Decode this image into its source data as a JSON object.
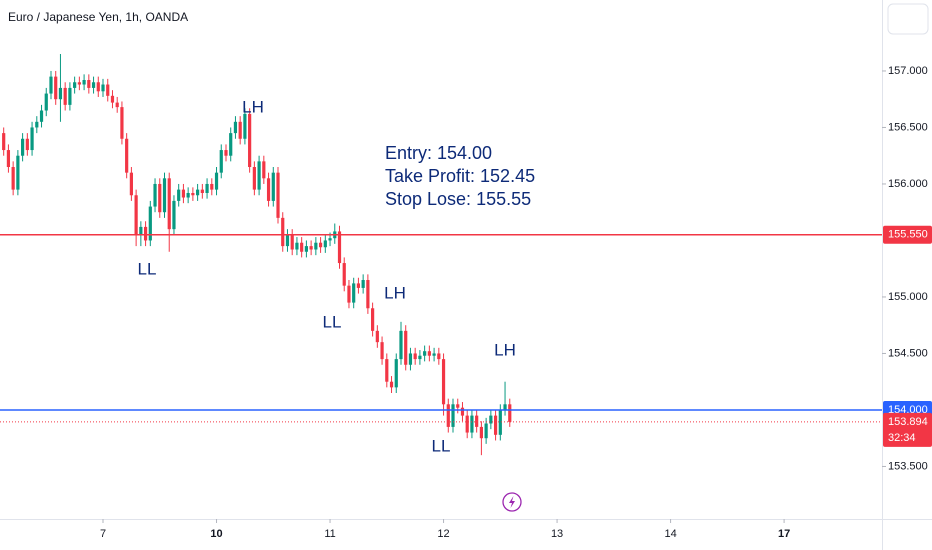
{
  "chart_data": {
    "type": "candlestick",
    "title": "Euro / Japanese Yen, 1h, OANDA",
    "series": [
      {
        "up_color": "#089981",
        "down_color": "#f23645",
        "open": [
          156.45,
          156.3,
          156.15,
          155.95,
          156.25,
          156.4,
          156.3,
          156.5,
          156.55,
          156.65,
          156.8,
          156.95,
          156.75,
          156.85,
          156.7,
          156.85,
          156.9,
          156.88,
          156.92,
          156.85,
          156.9,
          156.82,
          156.88,
          156.78,
          156.72,
          156.68,
          156.4,
          156.1,
          155.9,
          155.55,
          155.62,
          155.5,
          155.8,
          156.0,
          155.75,
          156.05,
          155.6,
          155.85,
          155.95,
          155.88,
          155.92,
          155.9,
          155.95,
          155.92,
          156.0,
          155.95,
          156.1,
          156.3,
          156.25,
          156.45,
          156.55,
          156.4,
          156.62,
          156.15,
          155.95,
          156.2,
          156.05,
          155.85,
          156.1,
          155.7,
          155.45,
          155.55,
          155.42,
          155.48,
          155.4,
          155.45,
          155.42,
          155.48,
          155.44,
          155.5,
          155.52,
          155.58,
          155.3,
          155.1,
          154.95,
          155.12,
          155.08,
          155.15,
          154.9,
          154.7,
          154.6,
          154.45,
          154.25,
          154.2,
          154.45,
          154.7,
          154.4,
          154.5,
          154.45,
          154.48,
          154.52,
          154.48,
          154.5,
          154.45,
          154.05,
          153.85,
          154.05,
          154.02,
          153.95,
          153.8,
          153.95,
          153.85,
          153.75,
          153.88,
          153.95,
          153.78,
          154.0,
          154.05
        ],
        "high": [
          156.5,
          156.35,
          156.2,
          156.3,
          156.45,
          156.45,
          156.55,
          156.6,
          156.7,
          156.85,
          157.0,
          157.0,
          157.15,
          156.9,
          156.9,
          156.95,
          156.95,
          156.97,
          156.97,
          156.95,
          156.95,
          156.93,
          156.93,
          156.83,
          156.77,
          156.73,
          156.45,
          156.15,
          155.95,
          155.67,
          155.67,
          155.85,
          156.05,
          156.05,
          156.1,
          156.1,
          155.9,
          156.0,
          156.0,
          155.97,
          155.97,
          156.0,
          156.0,
          156.05,
          156.05,
          156.15,
          156.35,
          156.35,
          156.5,
          156.6,
          156.6,
          156.67,
          156.67,
          156.2,
          156.25,
          156.25,
          156.1,
          156.15,
          156.15,
          155.75,
          155.6,
          155.6,
          155.53,
          155.53,
          155.5,
          155.5,
          155.53,
          155.53,
          155.55,
          155.57,
          155.65,
          155.63,
          155.35,
          155.15,
          155.17,
          155.17,
          155.2,
          155.2,
          154.95,
          154.75,
          154.65,
          154.5,
          154.3,
          154.5,
          154.78,
          154.75,
          154.55,
          154.55,
          154.53,
          154.57,
          154.57,
          154.55,
          154.55,
          154.5,
          154.1,
          154.1,
          154.1,
          154.07,
          154.0,
          154.0,
          154.0,
          153.9,
          153.93,
          154.0,
          154.0,
          154.05,
          154.25,
          154.1
        ],
        "low": [
          156.25,
          156.1,
          155.9,
          155.9,
          156.2,
          156.25,
          156.25,
          156.45,
          156.5,
          156.6,
          156.75,
          156.7,
          156.55,
          156.65,
          156.65,
          156.8,
          156.83,
          156.83,
          156.8,
          156.8,
          156.77,
          156.77,
          156.73,
          156.67,
          156.63,
          156.35,
          156.05,
          155.85,
          155.45,
          155.45,
          155.45,
          155.45,
          155.75,
          155.7,
          155.7,
          155.4,
          155.55,
          155.8,
          155.83,
          155.83,
          155.85,
          155.85,
          155.87,
          155.87,
          155.9,
          155.9,
          156.05,
          156.2,
          156.2,
          156.4,
          156.35,
          156.35,
          156.1,
          155.9,
          155.9,
          156.0,
          155.8,
          155.8,
          155.65,
          155.4,
          155.4,
          155.37,
          155.37,
          155.35,
          155.35,
          155.37,
          155.37,
          155.39,
          155.39,
          155.45,
          155.47,
          155.25,
          155.05,
          154.9,
          154.9,
          155.03,
          155.03,
          154.85,
          154.65,
          154.55,
          154.4,
          154.2,
          154.15,
          154.15,
          154.4,
          154.35,
          154.35,
          154.4,
          154.4,
          154.43,
          154.43,
          154.43,
          154.4,
          153.95,
          153.8,
          153.8,
          153.97,
          153.9,
          153.75,
          153.75,
          153.8,
          153.6,
          153.7,
          153.83,
          153.73,
          153.73,
          153.95,
          153.85
        ],
        "close": [
          156.3,
          156.15,
          155.95,
          156.25,
          156.4,
          156.3,
          156.5,
          156.55,
          156.65,
          156.8,
          156.95,
          156.75,
          156.85,
          156.7,
          156.85,
          156.9,
          156.88,
          156.92,
          156.85,
          156.9,
          156.82,
          156.88,
          156.78,
          156.72,
          156.68,
          156.4,
          156.1,
          155.9,
          155.55,
          155.62,
          155.5,
          155.8,
          156.0,
          155.75,
          156.05,
          155.6,
          155.85,
          155.95,
          155.88,
          155.92,
          155.9,
          155.95,
          155.92,
          156.0,
          155.95,
          156.1,
          156.3,
          156.25,
          156.45,
          156.55,
          156.4,
          156.62,
          156.15,
          155.95,
          156.2,
          156.05,
          155.85,
          156.1,
          155.7,
          155.45,
          155.55,
          155.42,
          155.48,
          155.4,
          155.45,
          155.42,
          155.48,
          155.44,
          155.5,
          155.52,
          155.58,
          155.3,
          155.1,
          154.95,
          155.12,
          155.08,
          155.15,
          154.9,
          154.7,
          154.6,
          154.45,
          154.25,
          154.2,
          154.45,
          154.7,
          154.4,
          154.5,
          154.45,
          154.48,
          154.52,
          154.48,
          154.5,
          154.45,
          154.05,
          153.85,
          154.05,
          154.02,
          153.95,
          153.8,
          153.95,
          153.85,
          153.75,
          153.88,
          153.95,
          153.78,
          154.0,
          154.05,
          153.894
        ]
      }
    ],
    "xlim": [
      -0.78,
      185.7
    ],
    "xticks": [
      {
        "value": 21,
        "label": "7"
      },
      {
        "value": 45,
        "label": "10"
      },
      {
        "value": 69,
        "label": "11"
      },
      {
        "value": 93,
        "label": "12"
      },
      {
        "value": 117,
        "label": "13"
      },
      {
        "value": 141,
        "label": "14"
      },
      {
        "value": 165,
        "label": "17"
      }
    ],
    "ylim": [
      153.035,
      157.628
    ],
    "yticks": [
      {
        "value": 157,
        "label": "157.000"
      },
      {
        "value": 156.5,
        "label": "156.500"
      },
      {
        "value": 156,
        "label": "156.000"
      },
      {
        "value": 155,
        "label": "155.000"
      },
      {
        "value": 154.5,
        "label": "154.500"
      },
      {
        "value": 153.5,
        "label": "153.500"
      }
    ],
    "price_lines": [
      {
        "value": 155.55,
        "label": "155.550",
        "color": "#f23645"
      },
      {
        "value": 154,
        "label": "154.000",
        "color": "#2962ff"
      }
    ],
    "last_price": {
      "value": 153.894,
      "label": "153.894",
      "countdown": "32:34",
      "color": "#f23645"
    },
    "annotations": [
      "LH",
      "LL",
      "LL",
      "LH",
      "LH",
      "LL"
    ],
    "note_lines": [
      "Entry: 154.00",
      "Take Profit: 152.45",
      "Stop Lose: 155.55"
    ]
  }
}
